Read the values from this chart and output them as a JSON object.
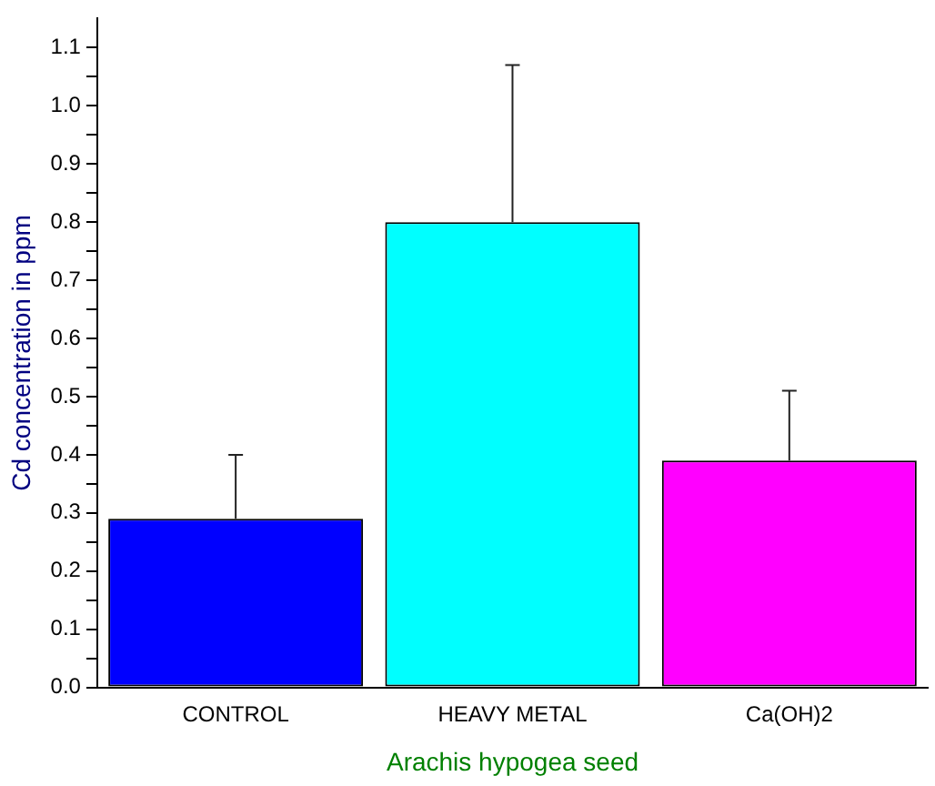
{
  "chart_data": {
    "type": "bar",
    "xlabel": "Arachis hypogea seed",
    "ylabel": "Cd concentration in ppm",
    "categories": [
      "CONTROL",
      "HEAVY METAL",
      "Ca(OH)2"
    ],
    "values": [
      0.29,
      0.8,
      0.39
    ],
    "colors": [
      "#0000ff",
      "#00ffff",
      "#ff00ff"
    ],
    "errors": [
      [
        0.29,
        0.4
      ],
      [
        0.8,
        1.07
      ],
      [
        0.39,
        0.51
      ]
    ],
    "ylim": [
      0,
      1.15
    ],
    "yticks": [
      {
        "value": 0,
        "label": "0.0"
      },
      {
        "value": 0.05,
        "label": null
      },
      {
        "value": 0.1,
        "label": "0.1"
      },
      {
        "value": 0.15,
        "label": null
      },
      {
        "value": 0.2,
        "label": "0.2"
      },
      {
        "value": 0.25,
        "label": null
      },
      {
        "value": 0.3,
        "label": "0.3"
      },
      {
        "value": 0.35,
        "label": null
      },
      {
        "value": 0.4,
        "label": "0.4"
      },
      {
        "value": 0.45,
        "label": null
      },
      {
        "value": 0.5,
        "label": "0.5"
      },
      {
        "value": 0.55,
        "label": null
      },
      {
        "value": 0.6,
        "label": "0.6"
      },
      {
        "value": 0.65,
        "label": null
      },
      {
        "value": 0.7,
        "label": "0.7"
      },
      {
        "value": 0.75,
        "label": null
      },
      {
        "value": 0.8,
        "label": "0.8"
      },
      {
        "value": 0.85,
        "label": null
      },
      {
        "value": 0.9,
        "label": "0.9"
      },
      {
        "value": 0.95,
        "label": null
      },
      {
        "value": 1.0,
        "label": "1.0"
      },
      {
        "value": 1.05,
        "label": null
      },
      {
        "value": 1.1,
        "label": "1.1"
      }
    ],
    "grid": false,
    "legend": false
  }
}
